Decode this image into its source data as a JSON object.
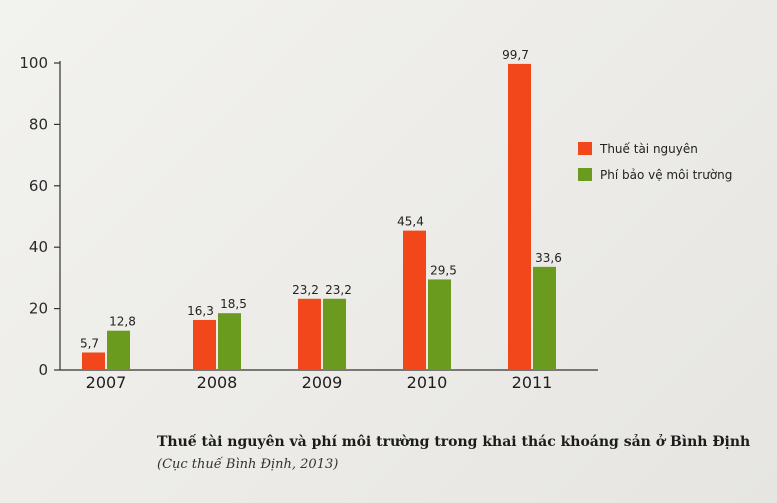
{
  "chart_data": {
    "type": "bar",
    "categories": [
      "2007",
      "2008",
      "2009",
      "2010",
      "2011"
    ],
    "series": [
      {
        "name": "Thuế tài nguyên",
        "values": [
          5.7,
          16.3,
          23.2,
          45.4,
          99.7
        ],
        "labels": [
          "5,7",
          "16,3",
          "23,2",
          "45,4",
          "99,7"
        ],
        "color": "#f2471b"
      },
      {
        "name": "Phí bảo vệ môi trường",
        "values": [
          12.8,
          18.5,
          23.2,
          29.5,
          33.6
        ],
        "labels": [
          "12,8",
          "18,5",
          "23,2",
          "29,5",
          "33,6"
        ],
        "color": "#6a9a1e"
      }
    ],
    "yticks": [
      "0",
      "20",
      "40",
      "60",
      "80",
      "100"
    ],
    "ylim": [
      0,
      100
    ],
    "legend": "right",
    "grid": false
  },
  "caption": {
    "title": "Thuế tài nguyên và phí môi trường trong khai thác khoáng sản ở Bình Định",
    "source": "(Cục thuế Bình Định, 2013)"
  }
}
